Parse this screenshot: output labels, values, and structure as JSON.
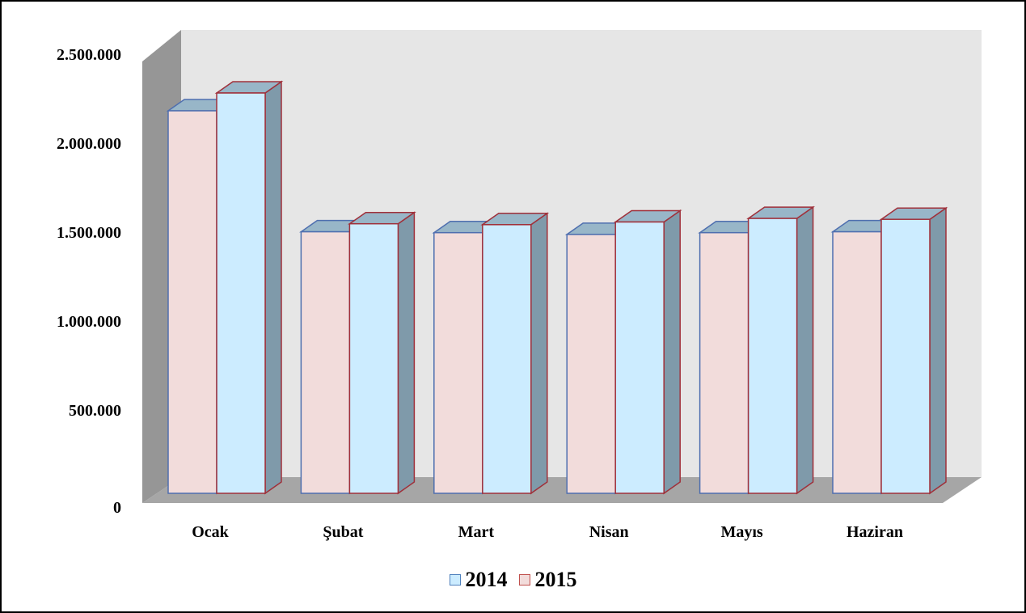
{
  "chart_data": {
    "type": "bar",
    "categories": [
      "Ocak",
      "Şubat",
      "Mart",
      "Nisan",
      "Mayıs",
      "Haziran"
    ],
    "series": [
      {
        "name": "2014",
        "values": [
          2150000,
          1470000,
          1465000,
          1455000,
          1465000,
          1470000
        ],
        "face_color": "#F2DCDB",
        "border_color": "#4F6FAF",
        "legend_swatch_fill": "#CCECFF",
        "legend_swatch_border": "#4F81BD"
      },
      {
        "name": "2015",
        "values": [
          2250000,
          1515000,
          1510000,
          1525000,
          1545000,
          1540000
        ],
        "face_color": "#CCECFF",
        "border_color": "#A0303A",
        "legend_swatch_fill": "#F2DCDB",
        "legend_swatch_border": "#C0504D"
      }
    ],
    "yticks": [
      "0",
      "500.000",
      "1.000.000",
      "1.500.000",
      "2.000.000",
      "2.500.000"
    ],
    "ylim": [
      0,
      2500000
    ],
    "three_d": true,
    "grid": false,
    "legend_position": "bottom",
    "colors": {
      "back_wall": "#E6E6E6",
      "side_wall": "#969696",
      "floor": "#A6A6A6",
      "bar_side": "#7F9AAA",
      "bar_top": "#98B6C8"
    }
  }
}
